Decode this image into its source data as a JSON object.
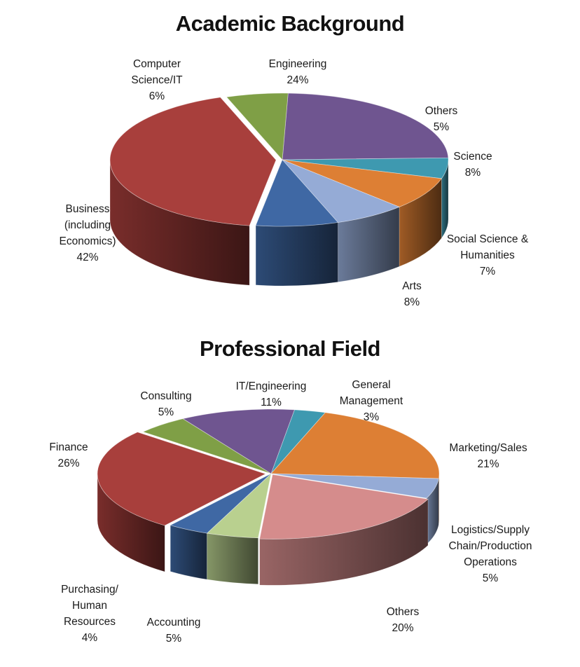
{
  "chart_data": [
    {
      "type": "pie",
      "title": "Academic Background",
      "slices": [
        {
          "label": [
            "Engineering"
          ],
          "value": 24,
          "pct": "24%",
          "color": "#6f5590"
        },
        {
          "label": [
            "Others"
          ],
          "value": 5,
          "pct": "5%",
          "color": "#3e99b0"
        },
        {
          "label": [
            "Science"
          ],
          "value": 8,
          "pct": "8%",
          "color": "#dd7f34"
        },
        {
          "label": [
            "Social  Science &",
            "Humanities"
          ],
          "value": 7,
          "pct": "7%",
          "color": "#95abd6"
        },
        {
          "label": [
            "Arts"
          ],
          "value": 8,
          "pct": "8%",
          "color": "#3f68a4"
        },
        {
          "label": [
            "Business",
            "(including",
            "Economics)"
          ],
          "value": 42,
          "pct": "42%",
          "color": "#a83f3c"
        },
        {
          "label": [
            "Computer",
            "Science/IT"
          ],
          "value": 6,
          "pct": "6%",
          "color": "#7f9f46"
        }
      ]
    },
    {
      "type": "pie",
      "title": "Professional Field",
      "slices": [
        {
          "label": [
            "General",
            "Management"
          ],
          "value": 3,
          "pct": "3%",
          "color": "#3e99b0"
        },
        {
          "label": [
            "Marketing/Sales"
          ],
          "value": 21,
          "pct": "21%",
          "color": "#dd7f34"
        },
        {
          "label": [
            "Logistics/Supply",
            "Chain/Production",
            "Operations"
          ],
          "value": 5,
          "pct": "5%",
          "color": "#95abd6"
        },
        {
          "label": [
            "Others"
          ],
          "value": 20,
          "pct": "20%",
          "color": "#d58c8c"
        },
        {
          "label": [
            "Accounting"
          ],
          "value": 5,
          "pct": "5%",
          "color": "#b9d08f"
        },
        {
          "label": [
            "Purchasing/",
            "Human",
            "Resources"
          ],
          "value": 4,
          "pct": "4%",
          "color": "#3f68a4"
        },
        {
          "label": [
            "Finance"
          ],
          "value": 26,
          "pct": "26%",
          "color": "#a83f3c"
        },
        {
          "label": [
            "Consulting"
          ],
          "value": 5,
          "pct": "5%",
          "color": "#7f9f46"
        },
        {
          "label": [
            "IT/Engineering"
          ],
          "value": 11,
          "pct": "11%",
          "color": "#6f5590"
        }
      ]
    }
  ]
}
